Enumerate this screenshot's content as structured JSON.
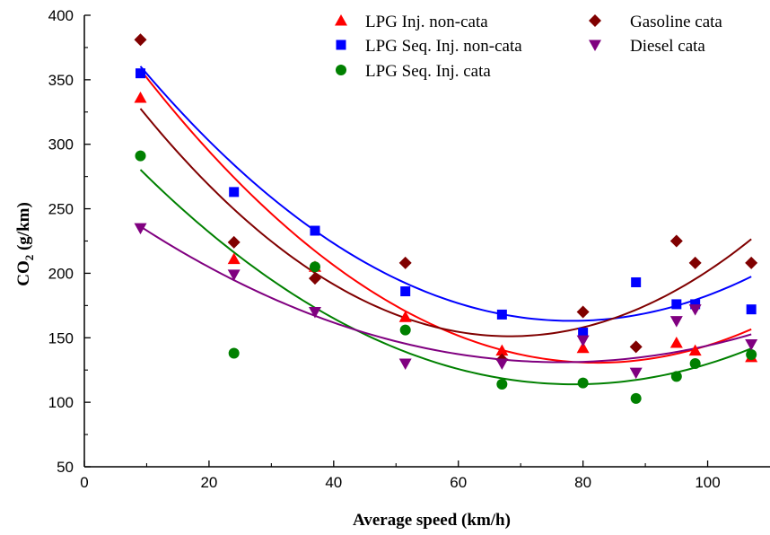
{
  "chart_data": {
    "type": "scatter",
    "title": "",
    "xlabel": "Average speed (km/h)",
    "ylabel_main": "CO",
    "ylabel_sub": "2",
    "ylabel_rest": " (g/km)",
    "xlim": [
      0,
      110
    ],
    "ylim": [
      50,
      400
    ],
    "xticks": [
      0,
      20,
      40,
      60,
      80,
      100
    ],
    "yticks": [
      50,
      100,
      150,
      200,
      250,
      300,
      350,
      400
    ],
    "grid": false,
    "legend_position": "top-right",
    "x": [
      9,
      24,
      37,
      51.5,
      67,
      80,
      88.5,
      95,
      98,
      107
    ],
    "series": [
      {
        "name": "LPG Inj. non-cata",
        "color": "#ff0000",
        "marker": "triangle-up",
        "values": [
          336,
          211,
          205,
          166,
          140,
          142,
          null,
          146,
          140,
          135
        ],
        "fit": [
          0.04233,
          -6.963,
          417.0
        ]
      },
      {
        "name": "LPG Seq. Inj. non-cata",
        "color": "#0000ff",
        "marker": "square",
        "values": [
          355,
          263,
          233,
          186,
          168,
          154,
          193,
          176,
          176,
          172
        ],
        "fit": [
          0.04125,
          -6.448,
          415.1
        ]
      },
      {
        "name": "LPG Seq. Inj. cata",
        "color": "#008000",
        "marker": "circle",
        "values": [
          291,
          138,
          205,
          156,
          114,
          115,
          103,
          120,
          130,
          137
        ],
        "fit": [
          0.03437,
          -5.401,
          326.1
        ]
      },
      {
        "name": "Gasoline cata",
        "color": "#800000",
        "marker": "diamond",
        "values": [
          381,
          224,
          196,
          208,
          133,
          170,
          143,
          225,
          208,
          208
        ],
        "fit": [
          0.05022,
          -6.858,
          385.3
        ]
      },
      {
        "name": "Diesel cata",
        "color": "#800080",
        "marker": "triangle-down",
        "values": [
          235,
          199,
          170,
          130,
          130,
          148,
          123,
          163,
          172,
          145
        ],
        "fit": [
          0.02313,
          -3.536,
          266.2
        ]
      }
    ]
  }
}
